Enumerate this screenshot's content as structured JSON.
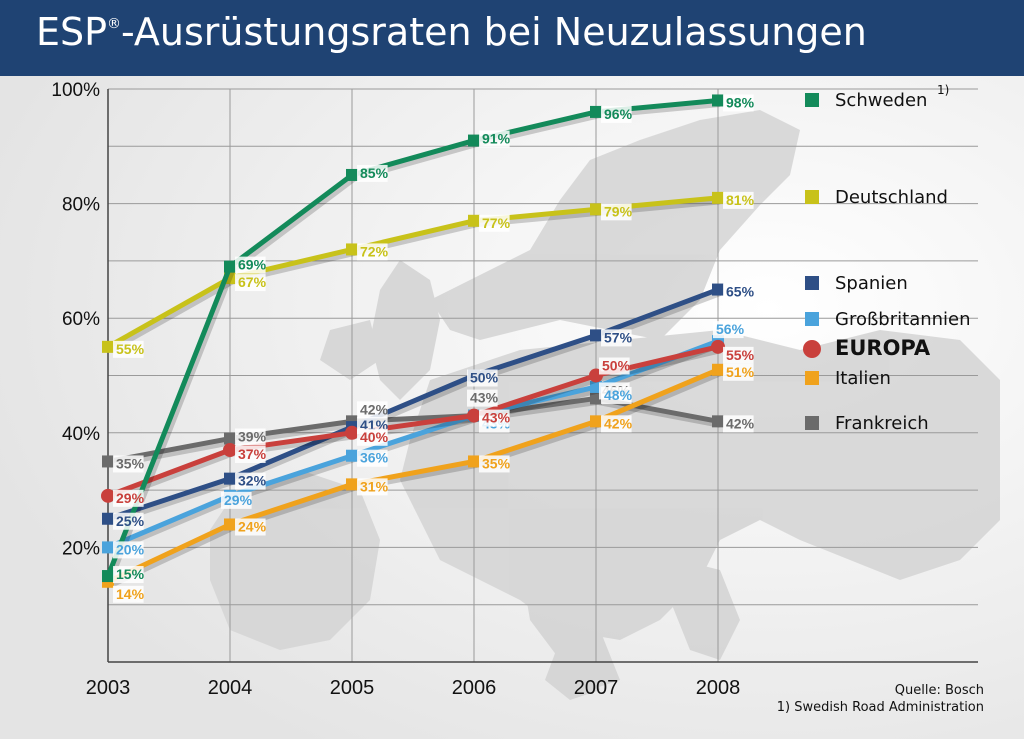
{
  "header": {
    "title_main": "ESP",
    "title_sup": "®",
    "title_rest": "-Ausrüstungsraten bei Neuzulassungen"
  },
  "colors": {
    "header_bg": "#1f4373",
    "Schweden": "#138a5a",
    "Deutschland": "#c8c21a",
    "Spanien": "#2e4f86",
    "Großbritannien": "#4aa3dc",
    "EUROPA": "#c9403c",
    "Italien": "#f0a21c",
    "Frankreich": "#6b6b6b"
  },
  "chart_data": {
    "type": "line",
    "title": "ESP®-Ausrüstungsraten bei Neuzulassungen",
    "x": [
      "2003",
      "2004",
      "2005",
      "2006",
      "2007",
      "2008"
    ],
    "ylim": [
      0,
      100
    ],
    "yticks": [
      "20%",
      "40%",
      "60%",
      "80%",
      "100%"
    ],
    "grid": true,
    "legend_position": "right",
    "series": [
      {
        "name": "Schweden",
        "note": "1)",
        "marker": "square",
        "values": [
          15,
          69,
          85,
          91,
          96,
          98
        ],
        "labels": [
          "15%",
          "69%",
          "85%",
          "91%",
          "96%",
          "98%"
        ]
      },
      {
        "name": "Deutschland",
        "marker": "square",
        "values": [
          55,
          67,
          72,
          77,
          79,
          81
        ],
        "labels": [
          "55%",
          "67%",
          "72%",
          "77%",
          "79%",
          "81%"
        ]
      },
      {
        "name": "Spanien",
        "marker": "square",
        "values": [
          25,
          32,
          41,
          50,
          57,
          65
        ],
        "labels": [
          "25%",
          "32%",
          "41%",
          "50%",
          "57%",
          "65%"
        ]
      },
      {
        "name": "Großbritannien",
        "marker": "square",
        "values": [
          20,
          29,
          36,
          43,
          48,
          56
        ],
        "labels": [
          "20%",
          "29%",
          "36%",
          "43%",
          "48%",
          "56%"
        ]
      },
      {
        "name": "EUROPA",
        "marker": "circle",
        "bold": true,
        "values": [
          29,
          37,
          40,
          43,
          50,
          55
        ],
        "labels": [
          "29%",
          "37%",
          "40%",
          "43%",
          "50%",
          "55%"
        ]
      },
      {
        "name": "Italien",
        "marker": "square",
        "values": [
          14,
          24,
          31,
          35,
          42,
          51
        ],
        "labels": [
          "14%",
          "24%",
          "31%",
          "35%",
          "42%",
          "51%"
        ]
      },
      {
        "name": "Frankreich",
        "marker": "square",
        "values": [
          35,
          39,
          42,
          43,
          46,
          42
        ],
        "labels": [
          "35%",
          "39%",
          "42%",
          "43%",
          "46%",
          "42%"
        ]
      }
    ]
  },
  "source": {
    "line1": "Quelle: Bosch",
    "line2": "1) Swedish Road Administration"
  }
}
